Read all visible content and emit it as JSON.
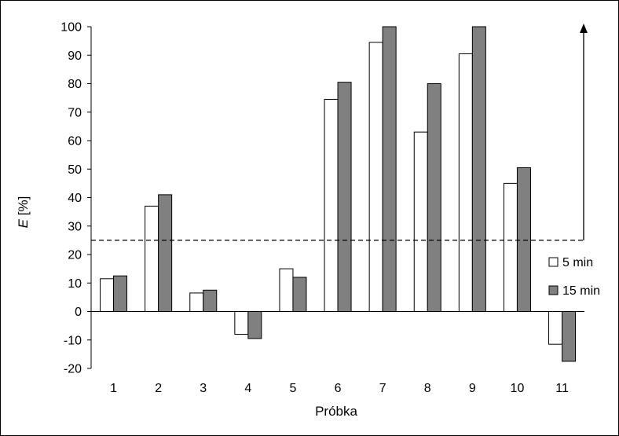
{
  "chart_data": {
    "type": "bar",
    "categories": [
      "1",
      "2",
      "3",
      "4",
      "5",
      "6",
      "7",
      "8",
      "9",
      "10",
      "11"
    ],
    "series": [
      {
        "name": "5 min",
        "color": "#ffffff",
        "values": [
          11.5,
          37,
          6.5,
          -8,
          15,
          74.5,
          94.5,
          63,
          90.5,
          45,
          -11.5
        ]
      },
      {
        "name": "15 min",
        "color": "#808080",
        "values": [
          12.5,
          41,
          7.5,
          -9.5,
          12,
          80.5,
          100,
          80,
          100,
          50.5,
          -17.5
        ]
      }
    ],
    "xlabel": "Próbka",
    "ylabel_italic": "E",
    "ylabel_unit": " [%]",
    "ylim": [
      -20,
      100
    ],
    "yticks": [
      -20,
      -10,
      0,
      10,
      20,
      30,
      40,
      50,
      60,
      70,
      80,
      90,
      100
    ],
    "threshold": 25,
    "threshold_arrow": true,
    "grid": false,
    "legend_position": "right"
  }
}
